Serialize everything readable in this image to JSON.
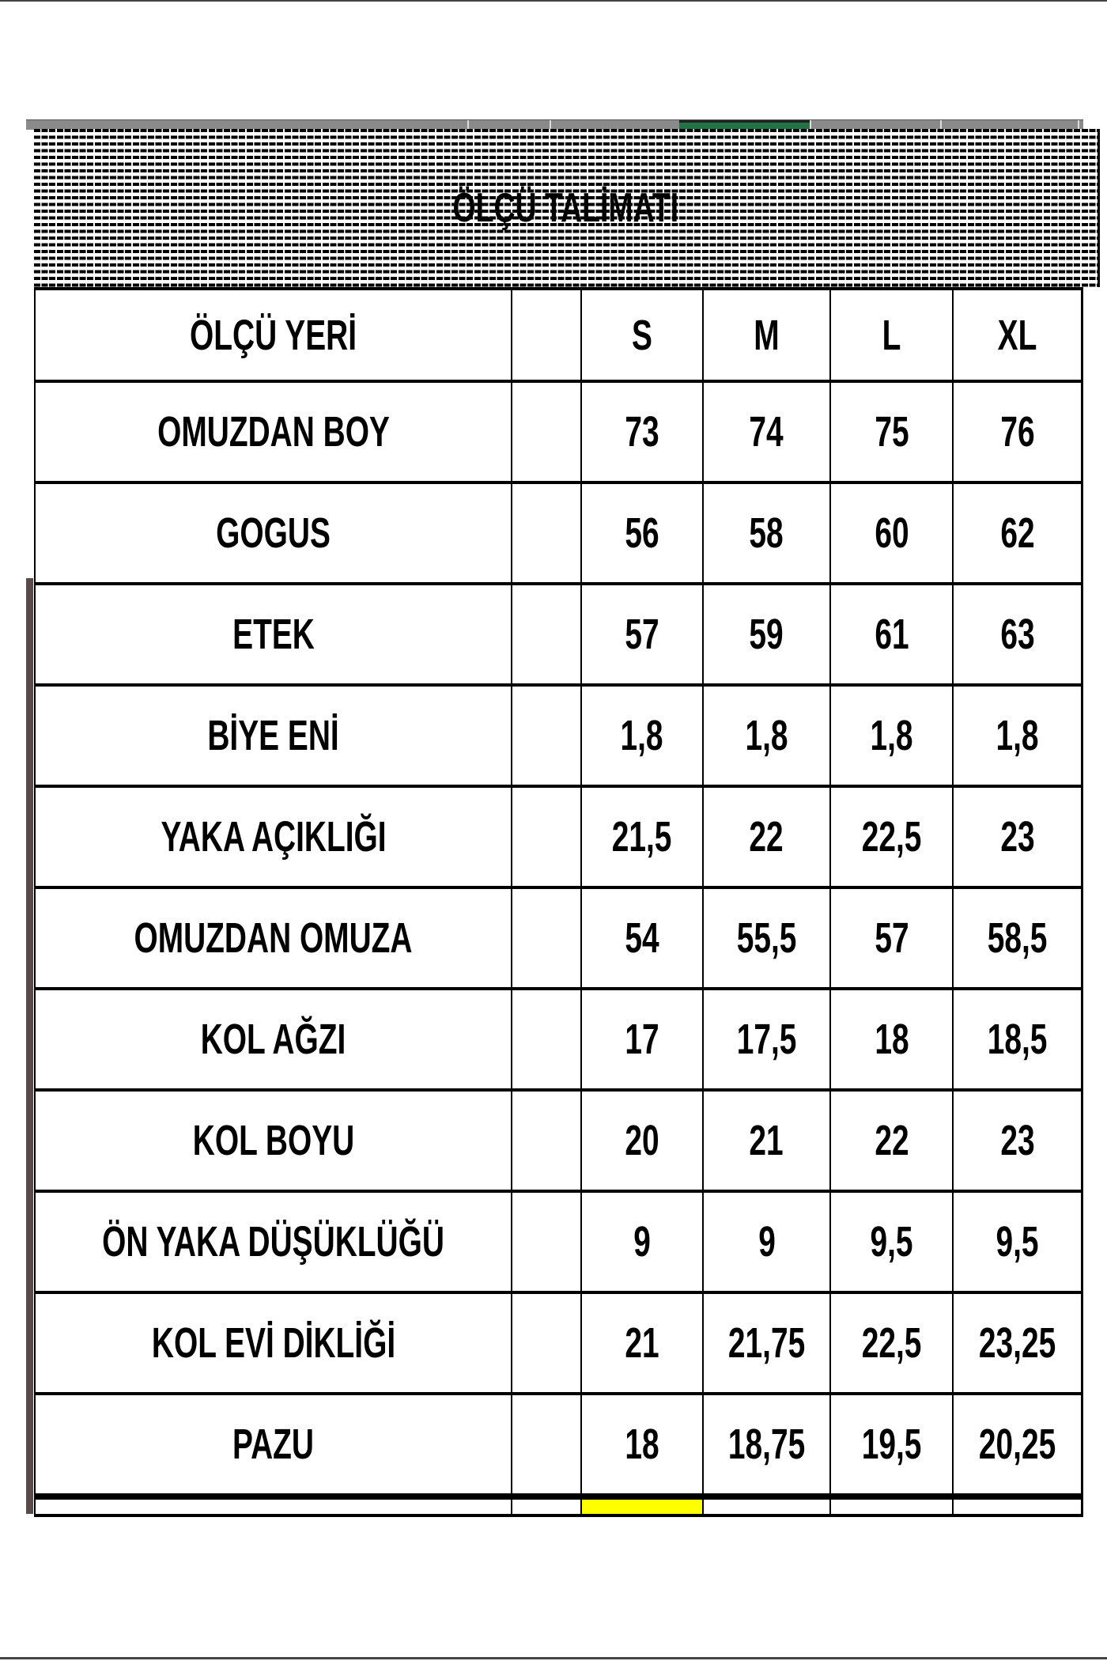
{
  "title": "ÖLÇÜ TALİMATI",
  "table": {
    "headers": [
      "ÖLÇÜ YERİ",
      "",
      "S",
      "M",
      "L",
      "XL"
    ],
    "rows": [
      {
        "label": "OMUZDAN BOY",
        "values": [
          "73",
          "74",
          "75",
          "76"
        ]
      },
      {
        "label": "GOGUS",
        "values": [
          "56",
          "58",
          "60",
          "62"
        ]
      },
      {
        "label": "ETEK",
        "values": [
          "57",
          "59",
          "61",
          "63"
        ]
      },
      {
        "label": "BİYE ENİ",
        "values": [
          "1,8",
          "1,8",
          "1,8",
          "1,8"
        ]
      },
      {
        "label": "YAKA AÇIKLIĞI",
        "values": [
          "21,5",
          "22",
          "22,5",
          "23"
        ]
      },
      {
        "label": "OMUZDAN OMUZA",
        "values": [
          "54",
          "55,5",
          "57",
          "58,5"
        ]
      },
      {
        "label": "KOL AĞZI",
        "values": [
          "17",
          "17,5",
          "18",
          "18,5"
        ]
      },
      {
        "label": "KOL BOYU",
        "values": [
          "20",
          "21",
          "22",
          "23"
        ]
      },
      {
        "label": "ÖN YAKA DÜŞÜKLÜĞÜ",
        "values": [
          "9",
          "9",
          "9,5",
          "9,5"
        ]
      },
      {
        "label": "KOL EVİ DİKLİĞİ",
        "values": [
          "21",
          "21,75",
          "22,5",
          "23,25"
        ]
      },
      {
        "label": "PAZU",
        "values": [
          "18",
          "18,75",
          "19,5",
          "20,25"
        ]
      }
    ]
  },
  "colors": {
    "selected_column": "#217346",
    "highlight_cell": "#ffff00"
  }
}
